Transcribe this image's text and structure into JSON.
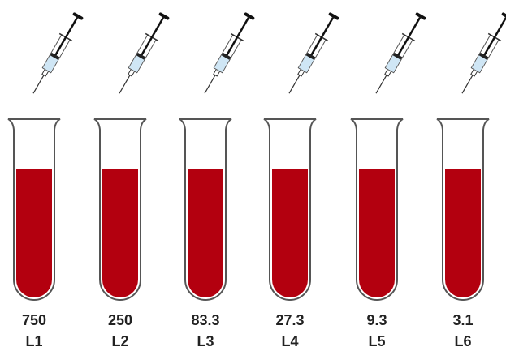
{
  "tubes": [
    {
      "value": "750",
      "label": "L1"
    },
    {
      "value": "250",
      "label": "L2"
    },
    {
      "value": "83.3",
      "label": "L3"
    },
    {
      "value": "27.3",
      "label": "L4"
    },
    {
      "value": "9.3",
      "label": "L5"
    },
    {
      "value": "3.1",
      "label": "L6"
    }
  ]
}
